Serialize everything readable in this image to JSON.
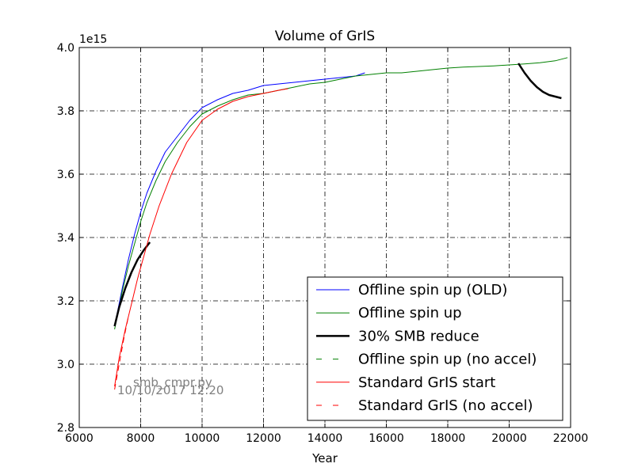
{
  "chart_data": {
    "type": "line",
    "title": "Volume of GrIS",
    "xlabel": "Year",
    "ylabel": "",
    "y_offset_label": "1e15",
    "xlim": [
      6000,
      22000
    ],
    "ylim": [
      2.8,
      4.0
    ],
    "xticks": [
      6000,
      8000,
      10000,
      12000,
      14000,
      16000,
      18000,
      20000,
      22000
    ],
    "yticks": [
      2.8,
      3.0,
      3.2,
      3.4,
      3.6,
      3.8,
      4.0
    ],
    "grid": true,
    "legend_position": "lower-right",
    "annotations": [
      "smb_cmpr.py",
      "10/10/2017 12:20"
    ],
    "series": [
      {
        "name": "Offline spin up (OLD)",
        "color": "#0000ff",
        "dash": "solid",
        "width": 1,
        "x": [
          7150,
          7400,
          7600,
          7800,
          8000,
          8200,
          8500,
          8800,
          9200,
          9600,
          10000,
          10500,
          11000,
          11500,
          12000,
          12500,
          13000,
          13500,
          14000,
          14500,
          15000,
          15300
        ],
        "y": [
          3.12,
          3.24,
          3.33,
          3.41,
          3.48,
          3.54,
          3.61,
          3.67,
          3.72,
          3.77,
          3.81,
          3.835,
          3.855,
          3.865,
          3.88,
          3.885,
          3.89,
          3.895,
          3.9,
          3.905,
          3.91,
          3.92
        ]
      },
      {
        "name": "Offline spin up",
        "color": "#008000",
        "dash": "solid",
        "width": 1,
        "x": [
          7150,
          7400,
          7600,
          7800,
          8000,
          8200,
          8500,
          8800,
          9200,
          9600,
          10000,
          10500,
          11000,
          11500,
          12000,
          12500,
          13000,
          13500,
          14000,
          14500,
          15000,
          15500,
          16000,
          16500,
          17000,
          17500,
          18000,
          18500,
          19000,
          19500,
          20000,
          20500,
          21000,
          21500,
          21900
        ],
        "y": [
          3.11,
          3.23,
          3.31,
          3.38,
          3.45,
          3.51,
          3.58,
          3.64,
          3.7,
          3.75,
          3.79,
          3.815,
          3.835,
          3.85,
          3.855,
          3.865,
          3.875,
          3.885,
          3.89,
          3.9,
          3.91,
          3.915,
          3.92,
          3.92,
          3.925,
          3.93,
          3.935,
          3.938,
          3.94,
          3.942,
          3.945,
          3.948,
          3.952,
          3.958,
          3.968
        ]
      },
      {
        "name": "30% SMB reduce",
        "color": "#000000",
        "dash": "solid",
        "width": 2.5,
        "x": [
          7150,
          7300,
          7500,
          7700,
          7900,
          8100,
          8300
        ],
        "y": [
          3.12,
          3.18,
          3.24,
          3.29,
          3.33,
          3.36,
          3.385
        ]
      },
      {
        "name": "",
        "color": "#000000",
        "dash": "solid",
        "width": 2.5,
        "x": [
          20300,
          20500,
          20700,
          20900,
          21100,
          21300,
          21500,
          21700
        ],
        "y": [
          3.95,
          3.92,
          3.895,
          3.875,
          3.86,
          3.85,
          3.845,
          3.84
        ]
      },
      {
        "name": "Offline spin up (no accel)",
        "color": "#008000",
        "dash": "dashed",
        "width": 1,
        "x": [],
        "y": []
      },
      {
        "name": "Standard GrIS start",
        "color": "#ff0000",
        "dash": "solid",
        "width": 1,
        "x": [
          7150,
          7300,
          7500,
          7700,
          7900,
          8100,
          8300,
          8600,
          9000,
          9500,
          10000,
          10500,
          11000,
          11500,
          12000,
          12500,
          12800
        ],
        "y": [
          2.93,
          3.02,
          3.11,
          3.19,
          3.27,
          3.34,
          3.41,
          3.5,
          3.6,
          3.7,
          3.77,
          3.805,
          3.83,
          3.845,
          3.855,
          3.865,
          3.87
        ]
      },
      {
        "name": "Standard GrIS (no accel)",
        "color": "#ff0000",
        "dash": "dashed",
        "width": 1,
        "x": [
          7150,
          7300,
          7450,
          7600
        ],
        "y": [
          2.92,
          3.0,
          3.08,
          3.15
        ]
      }
    ]
  }
}
